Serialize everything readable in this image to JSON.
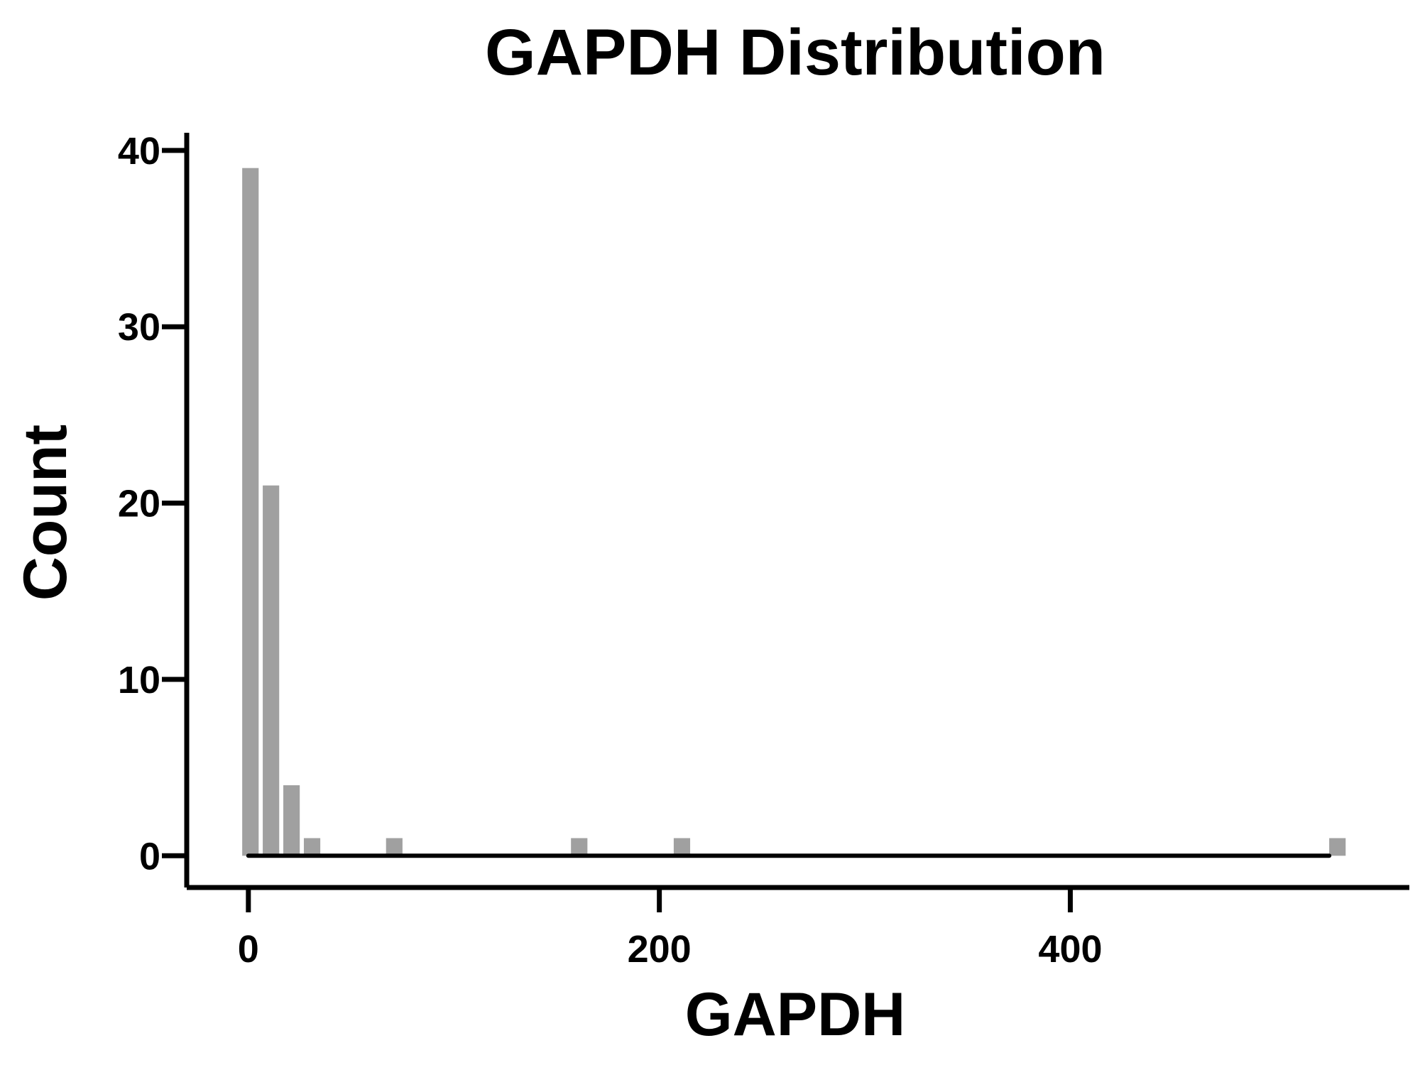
{
  "chart_data": {
    "type": "bar",
    "title": "GAPDH Distribution",
    "xlabel": "GAPDH",
    "ylabel": "Count",
    "xlim": [
      -30,
      565
    ],
    "ylim": [
      -1.8,
      41
    ],
    "x_ticks": [
      0,
      200,
      400
    ],
    "y_ticks": [
      0,
      10,
      20,
      30,
      40
    ],
    "bar_color": "#a0a0a0",
    "axis_color": "#000000",
    "grid": false,
    "legend": "none",
    "bins": [
      {
        "x0": -3,
        "x1": 5,
        "count": 39
      },
      {
        "x0": 7,
        "x1": 15,
        "count": 21
      },
      {
        "x0": 17,
        "x1": 25,
        "count": 4
      },
      {
        "x0": 27,
        "x1": 35,
        "count": 1
      },
      {
        "x0": 67,
        "x1": 75,
        "count": 1
      },
      {
        "x0": 157,
        "x1": 165,
        "count": 1
      },
      {
        "x0": 207,
        "x1": 215,
        "count": 1
      },
      {
        "x0": 526,
        "x1": 534,
        "count": 1
      }
    ],
    "baseline": {
      "x0": 0,
      "x1": 526,
      "y": 0
    }
  }
}
